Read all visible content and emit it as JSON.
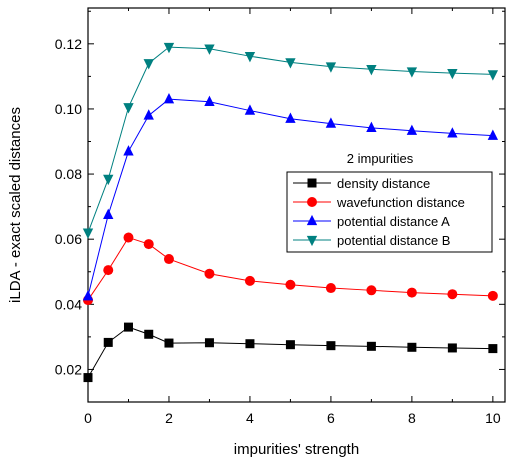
{
  "chart_data": {
    "type": "line",
    "title": "",
    "xlabel": "impurities' strength",
    "ylabel": "iLDA - exact scaled distances",
    "xlim": [
      0,
      10.3
    ],
    "ylim": [
      0.01,
      0.131
    ],
    "x_ticks": [
      0,
      2,
      4,
      6,
      8,
      10
    ],
    "x_tick_labels": [
      "0",
      "2",
      "4",
      "6",
      "8",
      "10"
    ],
    "y_ticks": [
      0.02,
      0.04,
      0.06,
      0.08,
      0.1,
      0.12
    ],
    "y_tick_labels": [
      "0.02",
      "0.04",
      "0.06",
      "0.08",
      "0.10",
      "0.12"
    ],
    "x_minor_step": 1,
    "y_minor_step": 0.01,
    "grid": false,
    "legend": {
      "title": "2 impurities",
      "placement": "center-right"
    },
    "x": [
      0,
      0.5,
      1,
      1.5,
      2,
      3,
      4,
      5,
      6,
      7,
      8,
      9,
      10
    ],
    "series": [
      {
        "name": "density distance",
        "color": "#000000",
        "marker": "square",
        "values": [
          0.0175,
          0.0283,
          0.033,
          0.0308,
          0.0281,
          0.0282,
          0.0279,
          0.0276,
          0.0273,
          0.0271,
          0.0268,
          0.0266,
          0.0264
        ]
      },
      {
        "name": "wavefunction distance",
        "color": "#ff0000",
        "marker": "circle",
        "values": [
          0.0413,
          0.0505,
          0.0605,
          0.0585,
          0.0539,
          0.0494,
          0.0472,
          0.046,
          0.045,
          0.0443,
          0.0436,
          0.0431,
          0.0426
        ]
      },
      {
        "name": "potential distance A",
        "color": "#0000ff",
        "marker": "triangle-up",
        "values": [
          0.0425,
          0.0675,
          0.087,
          0.098,
          0.103,
          0.1022,
          0.0995,
          0.097,
          0.0955,
          0.0942,
          0.0933,
          0.0925,
          0.0918
        ]
      },
      {
        "name": "potential distance B",
        "color": "#008080",
        "marker": "triangle-down",
        "values": [
          0.062,
          0.0785,
          0.1005,
          0.114,
          0.119,
          0.1185,
          0.1162,
          0.1143,
          0.113,
          0.1122,
          0.1115,
          0.111,
          0.1106
        ]
      }
    ]
  }
}
